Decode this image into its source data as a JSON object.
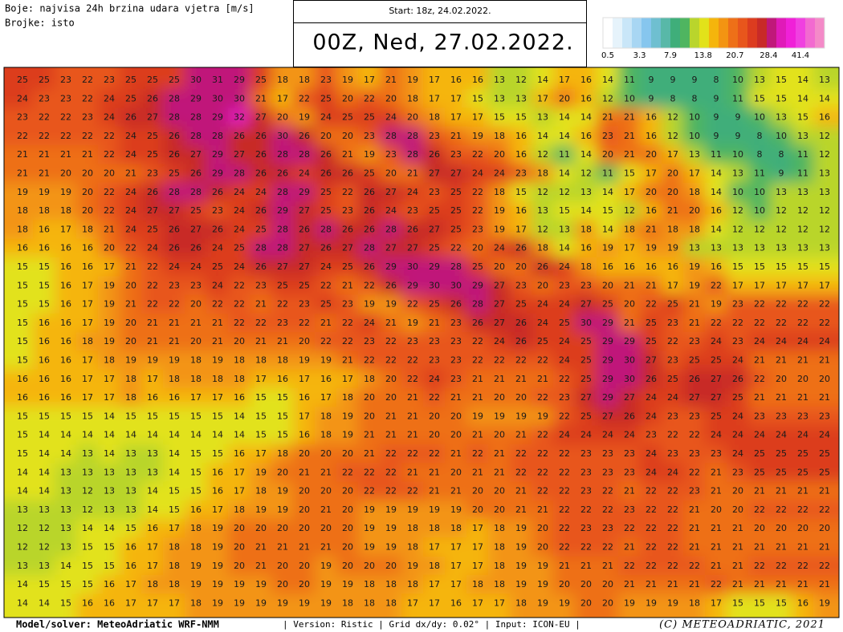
{
  "header": {
    "legend_title": "Boje: najvisa 24h brzina udara vjetra [m/s]",
    "numbers_note": "Brojke: isto",
    "start": "Start: 18z, 24.02.2022.",
    "valid": "00Z, Ned, 27.02.2022."
  },
  "colorbar": {
    "colors": [
      "#ffffff",
      "#e6f3fb",
      "#c9e6f8",
      "#a8d6f3",
      "#86c6ee",
      "#6fbfd0",
      "#58b8a8",
      "#3fae7a",
      "#4fb560",
      "#b9d52c",
      "#e2e21a",
      "#f5b50c",
      "#f39412",
      "#ee7018",
      "#e8561c",
      "#dc3c1f",
      "#c82a28",
      "#c0187a",
      "#e01ab8",
      "#f020d8",
      "#f040e0",
      "#f26ad0",
      "#f48ac8"
    ],
    "ticks": [
      0.5,
      3.3,
      7.9,
      13.8,
      20.7,
      28.4,
      41.4
    ]
  },
  "grid": {
    "rows": [
      [
        25,
        25,
        23,
        22,
        23,
        25,
        25,
        25,
        30,
        31,
        29,
        25,
        18,
        18,
        23,
        19,
        17,
        21,
        19,
        17,
        16,
        16,
        13,
        12,
        14,
        17,
        16,
        14,
        11,
        9,
        9,
        9,
        8,
        10,
        13,
        15,
        14,
        13
      ],
      [
        24,
        23,
        23,
        22,
        24,
        25,
        26,
        28,
        29,
        30,
        30,
        21,
        17,
        22,
        25,
        20,
        22,
        20,
        18,
        17,
        17,
        15,
        13,
        13,
        17,
        20,
        16,
        12,
        10,
        9,
        8,
        8,
        9,
        11,
        15,
        15,
        14,
        14
      ],
      [
        23,
        22,
        22,
        23,
        24,
        26,
        27,
        28,
        28,
        29,
        32,
        27,
        20,
        19,
        24,
        25,
        25,
        24,
        20,
        18,
        17,
        17,
        15,
        15,
        13,
        14,
        14,
        21,
        21,
        16,
        12,
        10,
        9,
        9,
        10,
        13,
        15,
        16
      ],
      [
        22,
        22,
        22,
        22,
        22,
        24,
        25,
        26,
        28,
        28,
        26,
        26,
        30,
        26,
        20,
        20,
        23,
        28,
        28,
        23,
        21,
        19,
        18,
        16,
        14,
        14,
        16,
        23,
        21,
        16,
        12,
        10,
        9,
        9,
        8,
        10,
        13,
        12
      ],
      [
        21,
        21,
        21,
        21,
        22,
        24,
        25,
        26,
        27,
        29,
        27,
        26,
        28,
        28,
        26,
        21,
        19,
        23,
        28,
        26,
        23,
        22,
        20,
        16,
        12,
        11,
        14,
        20,
        21,
        20,
        17,
        13,
        11,
        10,
        8,
        8,
        11,
        12
      ],
      [
        21,
        21,
        20,
        20,
        20,
        21,
        23,
        25,
        26,
        29,
        28,
        26,
        26,
        24,
        26,
        26,
        25,
        20,
        21,
        27,
        27,
        24,
        24,
        23,
        18,
        14,
        12,
        11,
        15,
        17,
        20,
        17,
        14,
        13,
        11,
        9,
        11,
        13
      ],
      [
        19,
        19,
        19,
        20,
        22,
        24,
        26,
        28,
        28,
        26,
        24,
        24,
        28,
        29,
        25,
        22,
        26,
        27,
        24,
        23,
        25,
        22,
        18,
        15,
        12,
        12,
        13,
        14,
        17,
        20,
        20,
        18,
        14,
        10,
        10,
        13,
        13,
        13
      ],
      [
        18,
        18,
        18,
        20,
        22,
        24,
        27,
        27,
        25,
        23,
        24,
        26,
        29,
        27,
        25,
        23,
        26,
        24,
        23,
        25,
        25,
        22,
        19,
        16,
        13,
        15,
        14,
        15,
        12,
        16,
        21,
        20,
        16,
        12,
        10,
        12,
        12,
        12
      ],
      [
        18,
        16,
        17,
        18,
        21,
        24,
        25,
        26,
        27,
        26,
        24,
        25,
        28,
        26,
        28,
        26,
        26,
        28,
        26,
        27,
        25,
        23,
        19,
        17,
        12,
        13,
        18,
        14,
        18,
        21,
        18,
        18,
        14,
        12,
        12,
        12,
        12,
        12
      ],
      [
        16,
        16,
        16,
        16,
        20,
        22,
        24,
        26,
        26,
        24,
        25,
        28,
        28,
        27,
        26,
        27,
        28,
        27,
        27,
        25,
        22,
        20,
        24,
        26,
        18,
        14,
        16,
        19,
        17,
        19,
        19,
        13,
        13,
        13,
        13,
        13,
        13,
        13
      ],
      [
        15,
        15,
        16,
        16,
        17,
        21,
        22,
        24,
        24,
        25,
        24,
        26,
        27,
        27,
        24,
        25,
        26,
        29,
        30,
        29,
        28,
        25,
        20,
        20,
        26,
        24,
        18,
        16,
        16,
        16,
        16,
        19,
        16,
        15,
        15,
        15,
        15,
        15
      ],
      [
        15,
        15,
        16,
        17,
        19,
        20,
        22,
        23,
        23,
        24,
        22,
        23,
        25,
        25,
        22,
        21,
        22,
        26,
        29,
        30,
        30,
        29,
        27,
        23,
        20,
        23,
        23,
        20,
        21,
        21,
        17,
        19,
        22,
        17,
        17,
        17,
        17,
        17
      ],
      [
        15,
        15,
        16,
        17,
        19,
        21,
        22,
        22,
        20,
        22,
        22,
        21,
        22,
        23,
        25,
        23,
        19,
        19,
        22,
        25,
        26,
        28,
        27,
        25,
        24,
        24,
        27,
        25,
        20,
        22,
        25,
        21,
        19,
        23,
        22,
        22,
        22,
        22
      ],
      [
        15,
        16,
        16,
        17,
        19,
        20,
        21,
        21,
        21,
        21,
        22,
        22,
        23,
        22,
        21,
        22,
        24,
        21,
        19,
        21,
        23,
        26,
        27,
        26,
        24,
        25,
        30,
        29,
        21,
        25,
        23,
        21,
        22,
        22,
        22,
        22,
        22,
        22
      ],
      [
        15,
        16,
        16,
        18,
        19,
        20,
        21,
        21,
        20,
        21,
        20,
        21,
        21,
        20,
        22,
        22,
        23,
        22,
        23,
        23,
        23,
        22,
        24,
        26,
        25,
        24,
        25,
        29,
        29,
        25,
        22,
        23,
        24,
        23,
        24,
        24,
        24,
        24
      ],
      [
        15,
        16,
        16,
        17,
        18,
        19,
        19,
        19,
        18,
        19,
        18,
        18,
        18,
        19,
        19,
        21,
        22,
        22,
        22,
        23,
        23,
        22,
        22,
        22,
        22,
        24,
        25,
        29,
        30,
        27,
        23,
        25,
        25,
        24,
        21,
        21,
        21,
        21
      ],
      [
        16,
        16,
        16,
        17,
        17,
        18,
        17,
        18,
        18,
        18,
        18,
        17,
        16,
        17,
        16,
        17,
        18,
        20,
        22,
        24,
        23,
        21,
        21,
        21,
        21,
        22,
        25,
        29,
        30,
        26,
        25,
        26,
        27,
        26,
        22,
        20,
        20,
        20
      ],
      [
        16,
        16,
        16,
        17,
        17,
        18,
        16,
        16,
        17,
        17,
        16,
        15,
        15,
        16,
        17,
        18,
        20,
        20,
        21,
        22,
        21,
        21,
        20,
        20,
        22,
        23,
        27,
        29,
        27,
        24,
        24,
        27,
        27,
        25,
        21,
        21,
        21,
        21
      ],
      [
        15,
        15,
        15,
        15,
        14,
        15,
        15,
        15,
        15,
        15,
        14,
        15,
        15,
        17,
        18,
        19,
        20,
        21,
        21,
        20,
        20,
        19,
        19,
        19,
        19,
        22,
        25,
        27,
        26,
        24,
        23,
        23,
        25,
        24,
        23,
        23,
        23,
        23
      ],
      [
        15,
        14,
        14,
        14,
        14,
        14,
        14,
        14,
        14,
        14,
        14,
        15,
        15,
        16,
        18,
        19,
        21,
        21,
        21,
        20,
        20,
        21,
        20,
        21,
        22,
        24,
        24,
        24,
        24,
        23,
        22,
        22,
        24,
        24,
        24,
        24,
        24,
        24
      ],
      [
        15,
        14,
        14,
        13,
        14,
        13,
        13,
        14,
        15,
        15,
        16,
        17,
        18,
        20,
        20,
        20,
        21,
        22,
        22,
        22,
        21,
        22,
        21,
        22,
        22,
        22,
        23,
        23,
        23,
        24,
        23,
        23,
        23,
        24,
        25,
        25,
        25,
        25
      ],
      [
        14,
        14,
        13,
        13,
        13,
        13,
        13,
        14,
        15,
        16,
        17,
        19,
        20,
        21,
        21,
        22,
        22,
        22,
        21,
        21,
        20,
        21,
        21,
        22,
        22,
        22,
        23,
        23,
        23,
        24,
        24,
        22,
        21,
        23,
        25,
        25,
        25,
        25
      ],
      [
        14,
        14,
        13,
        12,
        13,
        13,
        14,
        15,
        15,
        16,
        17,
        18,
        19,
        20,
        20,
        20,
        22,
        22,
        22,
        21,
        21,
        20,
        20,
        21,
        22,
        22,
        23,
        22,
        21,
        22,
        22,
        23,
        21,
        20,
        21,
        21,
        21,
        21
      ],
      [
        13,
        13,
        13,
        12,
        13,
        13,
        14,
        15,
        16,
        17,
        18,
        19,
        19,
        20,
        21,
        20,
        19,
        19,
        19,
        19,
        19,
        20,
        20,
        21,
        21,
        22,
        22,
        22,
        23,
        22,
        22,
        21,
        20,
        20,
        22,
        22,
        22,
        22
      ],
      [
        12,
        12,
        13,
        14,
        14,
        15,
        16,
        17,
        18,
        19,
        20,
        20,
        20,
        20,
        20,
        20,
        19,
        19,
        18,
        18,
        18,
        17,
        18,
        19,
        20,
        22,
        23,
        23,
        22,
        22,
        22,
        21,
        21,
        21,
        20,
        20,
        20,
        20
      ],
      [
        12,
        12,
        13,
        15,
        15,
        16,
        17,
        18,
        18,
        19,
        20,
        21,
        21,
        21,
        21,
        20,
        19,
        19,
        18,
        17,
        17,
        17,
        18,
        19,
        20,
        22,
        22,
        22,
        21,
        22,
        22,
        21,
        21,
        21,
        21,
        21,
        21,
        21
      ],
      [
        13,
        13,
        14,
        15,
        15,
        16,
        17,
        18,
        19,
        19,
        20,
        21,
        20,
        20,
        19,
        20,
        20,
        20,
        19,
        18,
        17,
        17,
        18,
        19,
        19,
        21,
        21,
        21,
        22,
        22,
        22,
        22,
        21,
        21,
        22,
        22,
        22,
        22
      ],
      [
        14,
        15,
        15,
        15,
        16,
        17,
        18,
        18,
        19,
        19,
        19,
        19,
        20,
        20,
        19,
        19,
        18,
        18,
        18,
        17,
        17,
        18,
        18,
        19,
        19,
        20,
        20,
        20,
        21,
        21,
        21,
        21,
        22,
        21,
        21,
        21,
        21,
        21
      ],
      [
        14,
        14,
        15,
        16,
        16,
        17,
        17,
        17,
        18,
        19,
        19,
        19,
        19,
        19,
        19,
        18,
        18,
        18,
        17,
        17,
        16,
        17,
        17,
        18,
        19,
        19,
        20,
        20,
        19,
        19,
        19,
        18,
        17,
        15,
        15,
        15,
        16,
        19
      ]
    ]
  },
  "footer": {
    "model": "Model/solver: MeteoAdriatic WRF-NMM",
    "info": "| Version: Ristic | Grid dx/dy: 0.02° | Input: ICON-EU |",
    "copyright": "(C) METEOADRIATIC, 2021"
  }
}
